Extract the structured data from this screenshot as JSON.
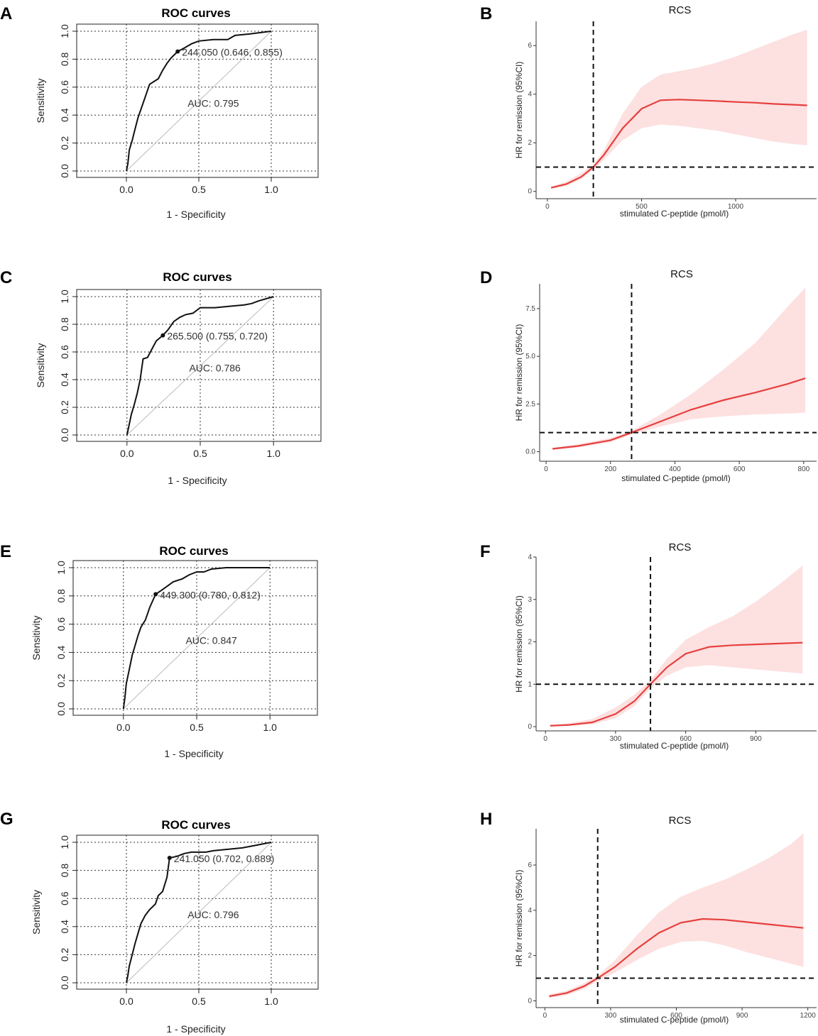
{
  "chart_data": [
    {
      "panel": "A",
      "type": "line",
      "title": "ROC curves",
      "xlabel": "1 - Specificity",
      "ylabel": "Sensitivity",
      "xlim": [
        -0.35,
        1.35
      ],
      "ylim": [
        0,
        1
      ],
      "x_ticks": [
        "0.0",
        "0.5",
        "1.0"
      ],
      "y_ticks": [
        "0.0",
        "0.2",
        "0.4",
        "0.6",
        "0.8",
        "1.0"
      ],
      "cutoff_point": [
        0.354,
        0.855
      ],
      "cutoff_label": "244.050 (0.646, 0.855)",
      "auc_label": "AUC: 0.795",
      "curve": [
        [
          0,
          0
        ],
        [
          0.01,
          0.05
        ],
        [
          0.02,
          0.15
        ],
        [
          0.04,
          0.22
        ],
        [
          0.06,
          0.3
        ],
        [
          0.08,
          0.38
        ],
        [
          0.1,
          0.44
        ],
        [
          0.12,
          0.5
        ],
        [
          0.14,
          0.56
        ],
        [
          0.16,
          0.62
        ],
        [
          0.19,
          0.64
        ],
        [
          0.22,
          0.66
        ],
        [
          0.25,
          0.72
        ],
        [
          0.28,
          0.77
        ],
        [
          0.31,
          0.81
        ],
        [
          0.354,
          0.855
        ],
        [
          0.4,
          0.88
        ],
        [
          0.45,
          0.91
        ],
        [
          0.5,
          0.93
        ],
        [
          0.6,
          0.94
        ],
        [
          0.7,
          0.94
        ],
        [
          0.75,
          0.97
        ],
        [
          0.85,
          0.98
        ],
        [
          1,
          1
        ]
      ]
    },
    {
      "panel": "B",
      "type": "line",
      "title": "RCS",
      "xlabel": "stimulated C-peptide (pmol/l)",
      "ylabel": "HR for remission (95%CI)",
      "xlim": [
        -60,
        1430
      ],
      "ylim": [
        -0.3,
        7.0
      ],
      "x_ticks": [
        0,
        500,
        1000
      ],
      "y_ticks": [
        0,
        2,
        4,
        6
      ],
      "cutoff_x": 244.05,
      "reference_hr": 1,
      "x": [
        20,
        100,
        180,
        244,
        300,
        400,
        500,
        600,
        700,
        800,
        900,
        1000,
        1100,
        1200,
        1300,
        1380
      ],
      "hr": [
        0.15,
        0.3,
        0.6,
        1.0,
        1.5,
        2.6,
        3.4,
        3.75,
        3.78,
        3.75,
        3.72,
        3.68,
        3.65,
        3.6,
        3.57,
        3.54
      ],
      "lower": [
        0.1,
        0.22,
        0.5,
        0.9,
        1.3,
        2.1,
        2.6,
        2.75,
        2.7,
        2.6,
        2.5,
        2.35,
        2.2,
        2.05,
        1.95,
        1.9
      ],
      "upper": [
        0.2,
        0.4,
        0.75,
        1.1,
        1.7,
        3.2,
        4.3,
        4.8,
        4.95,
        5.1,
        5.3,
        5.55,
        5.85,
        6.15,
        6.45,
        6.65
      ]
    },
    {
      "panel": "C",
      "type": "line",
      "title": "ROC curves",
      "xlabel": "1 - Specificity",
      "ylabel": "Sensitivity",
      "xlim": [
        -0.35,
        1.35
      ],
      "ylim": [
        0,
        1
      ],
      "x_ticks": [
        "0.0",
        "0.5",
        "1.0"
      ],
      "y_ticks": [
        "0.0",
        "0.2",
        "0.4",
        "0.6",
        "0.8",
        "1.0"
      ],
      "cutoff_point": [
        0.245,
        0.72
      ],
      "cutoff_label": "265.500 (0.755, 0.720)",
      "auc_label": "AUC: 0.786",
      "curve": [
        [
          0,
          0
        ],
        [
          0.01,
          0.05
        ],
        [
          0.03,
          0.15
        ],
        [
          0.05,
          0.22
        ],
        [
          0.07,
          0.3
        ],
        [
          0.09,
          0.4
        ],
        [
          0.11,
          0.55
        ],
        [
          0.14,
          0.56
        ],
        [
          0.16,
          0.6
        ],
        [
          0.2,
          0.68
        ],
        [
          0.245,
          0.72
        ],
        [
          0.28,
          0.76
        ],
        [
          0.32,
          0.82
        ],
        [
          0.36,
          0.85
        ],
        [
          0.4,
          0.87
        ],
        [
          0.45,
          0.88
        ],
        [
          0.5,
          0.92
        ],
        [
          0.6,
          0.92
        ],
        [
          0.7,
          0.93
        ],
        [
          0.8,
          0.94
        ],
        [
          0.85,
          0.95
        ],
        [
          0.9,
          0.97
        ],
        [
          1,
          1
        ]
      ]
    },
    {
      "panel": "D",
      "type": "line",
      "title": "RCS",
      "xlabel": "stimulated C-peptide (pmol/l)",
      "ylabel": "HR for remission (95%CI)",
      "xlim": [
        -20,
        840
      ],
      "ylim": [
        -0.5,
        8.8
      ],
      "x_ticks": [
        0,
        200,
        400,
        600,
        800
      ],
      "y_ticks": [
        "0.0",
        "2.5",
        "5.0",
        "7.5"
      ],
      "cutoff_x": 265.5,
      "reference_hr": 1,
      "x": [
        20,
        100,
        200,
        265,
        350,
        450,
        550,
        650,
        750,
        805
      ],
      "hr": [
        0.15,
        0.3,
        0.6,
        1.0,
        1.55,
        2.2,
        2.7,
        3.1,
        3.55,
        3.85
      ],
      "lower": [
        0.1,
        0.22,
        0.5,
        0.9,
        1.3,
        1.7,
        1.85,
        1.95,
        2.0,
        2.05
      ],
      "upper": [
        0.2,
        0.4,
        0.72,
        1.1,
        1.9,
        3.0,
        4.3,
        5.7,
        7.6,
        8.6
      ]
    },
    {
      "panel": "E",
      "type": "line",
      "title": "ROC curves",
      "xlabel": "1 - Specificity",
      "ylabel": "Sensitivity",
      "xlim": [
        -0.35,
        1.35
      ],
      "ylim": [
        0,
        1
      ],
      "x_ticks": [
        "0.0",
        "0.5",
        "1.0"
      ],
      "y_ticks": [
        "0.0",
        "0.2",
        "0.4",
        "0.6",
        "0.8",
        "1.0"
      ],
      "cutoff_point": [
        0.22,
        0.812
      ],
      "cutoff_label": "449.300 (0.780, 0.812)",
      "auc_label": "AUC: 0.847",
      "curve": [
        [
          0,
          0
        ],
        [
          0.01,
          0.08
        ],
        [
          0.02,
          0.18
        ],
        [
          0.04,
          0.28
        ],
        [
          0.06,
          0.38
        ],
        [
          0.08,
          0.45
        ],
        [
          0.1,
          0.52
        ],
        [
          0.12,
          0.58
        ],
        [
          0.15,
          0.63
        ],
        [
          0.18,
          0.72
        ],
        [
          0.22,
          0.812
        ],
        [
          0.26,
          0.84
        ],
        [
          0.3,
          0.87
        ],
        [
          0.34,
          0.9
        ],
        [
          0.4,
          0.92
        ],
        [
          0.45,
          0.95
        ],
        [
          0.5,
          0.97
        ],
        [
          0.55,
          0.97
        ],
        [
          0.6,
          0.99
        ],
        [
          0.7,
          1.0
        ],
        [
          1,
          1
        ]
      ]
    },
    {
      "panel": "F",
      "type": "line",
      "title": "RCS",
      "xlabel": "stimulated C-peptide (pmol/l)",
      "ylabel": "HR for remission (95%CI)",
      "xlim": [
        -40,
        1160
      ],
      "ylim": [
        -0.1,
        4.0
      ],
      "x_ticks": [
        0,
        300,
        600,
        900
      ],
      "y_ticks": [
        0,
        1,
        2,
        3,
        4
      ],
      "cutoff_x": 449.3,
      "reference_hr": 1,
      "x": [
        20,
        100,
        200,
        300,
        380,
        449,
        520,
        600,
        700,
        800,
        900,
        1000,
        1100
      ],
      "hr": [
        0.02,
        0.04,
        0.1,
        0.3,
        0.6,
        1.0,
        1.4,
        1.72,
        1.88,
        1.92,
        1.94,
        1.96,
        1.98
      ],
      "lower": [
        0.01,
        0.02,
        0.05,
        0.2,
        0.48,
        0.9,
        1.2,
        1.4,
        1.45,
        1.4,
        1.35,
        1.3,
        1.25
      ],
      "upper": [
        0.05,
        0.08,
        0.18,
        0.45,
        0.75,
        1.1,
        1.6,
        2.05,
        2.35,
        2.6,
        2.95,
        3.35,
        3.8
      ]
    },
    {
      "panel": "G",
      "type": "line",
      "title": "ROC curves",
      "xlabel": "1 - Specificity",
      "ylabel": "Sensitivity",
      "xlim": [
        -0.35,
        1.35
      ],
      "ylim": [
        0,
        1
      ],
      "x_ticks": [
        "0.0",
        "0.5",
        "1.0"
      ],
      "y_ticks": [
        "0.0",
        "0.2",
        "0.4",
        "0.6",
        "0.8",
        "1.0"
      ],
      "cutoff_point": [
        0.298,
        0.889
      ],
      "cutoff_label": "241.050 (0.702, 0.889)",
      "auc_label": "AUC: 0.796",
      "curve": [
        [
          0,
          0
        ],
        [
          0.01,
          0.05
        ],
        [
          0.02,
          0.12
        ],
        [
          0.04,
          0.2
        ],
        [
          0.06,
          0.28
        ],
        [
          0.08,
          0.35
        ],
        [
          0.1,
          0.42
        ],
        [
          0.13,
          0.48
        ],
        [
          0.16,
          0.52
        ],
        [
          0.2,
          0.56
        ],
        [
          0.22,
          0.62
        ],
        [
          0.25,
          0.65
        ],
        [
          0.28,
          0.75
        ],
        [
          0.298,
          0.889
        ],
        [
          0.35,
          0.9
        ],
        [
          0.4,
          0.92
        ],
        [
          0.45,
          0.93
        ],
        [
          0.55,
          0.93
        ],
        [
          0.6,
          0.94
        ],
        [
          0.7,
          0.95
        ],
        [
          0.8,
          0.96
        ],
        [
          0.9,
          0.98
        ],
        [
          1,
          1
        ]
      ]
    },
    {
      "panel": "H",
      "type": "line",
      "title": "RCS",
      "xlabel": "stimulated C-peptide (pmol/l)",
      "ylabel": "HR for remission (95%CI)",
      "xlim": [
        -40,
        1240
      ],
      "ylim": [
        -0.3,
        7.6
      ],
      "x_ticks": [
        0,
        300,
        600,
        900,
        1200
      ],
      "y_ticks": [
        0,
        2,
        4,
        6
      ],
      "cutoff_x": 241.05,
      "reference_hr": 1,
      "x": [
        20,
        100,
        180,
        241,
        320,
        420,
        520,
        620,
        720,
        820,
        920,
        1020,
        1120,
        1180
      ],
      "hr": [
        0.2,
        0.35,
        0.65,
        1.0,
        1.5,
        2.3,
        3.0,
        3.45,
        3.62,
        3.58,
        3.48,
        3.38,
        3.28,
        3.22
      ],
      "lower": [
        0.12,
        0.25,
        0.52,
        0.88,
        1.25,
        1.8,
        2.3,
        2.6,
        2.65,
        2.45,
        2.15,
        1.9,
        1.65,
        1.5
      ],
      "upper": [
        0.28,
        0.45,
        0.78,
        1.12,
        1.8,
        2.9,
        3.9,
        4.6,
        5.0,
        5.35,
        5.8,
        6.3,
        6.9,
        7.4
      ]
    }
  ]
}
